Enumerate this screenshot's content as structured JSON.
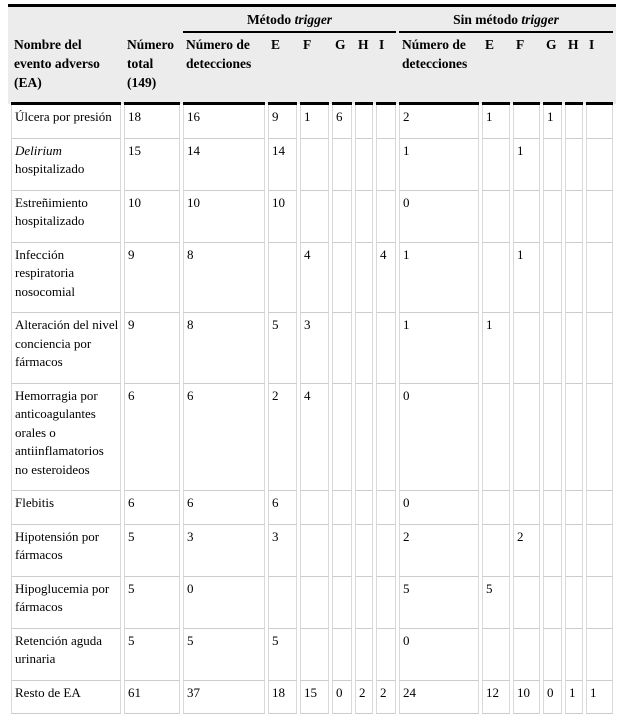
{
  "table": {
    "groups": {
      "trigger": {
        "prefix": "Método ",
        "italic": "trigger"
      },
      "sin": {
        "prefix": "Sin método ",
        "italic": "trigger"
      }
    },
    "headers": {
      "name": "Nombre del evento adverso (EA)",
      "total": "Número total (149)",
      "detections_trigger": "Número de detecciones",
      "detections_sin": "Número de detecciones",
      "letters": [
        "E",
        "F",
        "G",
        "H",
        "I"
      ]
    },
    "rows": [
      {
        "name": [
          {
            "text": "Úlcera por presión",
            "italic": false
          }
        ],
        "total": "18",
        "values": [
          "16",
          "9",
          "1",
          "6",
          "",
          "",
          "2",
          "1",
          "",
          "1",
          "",
          ""
        ]
      },
      {
        "name": [
          {
            "text": "Delirium",
            "italic": true
          },
          {
            "text": " hospitalizado",
            "italic": false
          }
        ],
        "total": "15",
        "values": [
          "14",
          "14",
          "",
          "",
          "",
          "",
          "1",
          "",
          "1",
          "",
          "",
          ""
        ]
      },
      {
        "name": [
          {
            "text": "Estreñimiento hospitalizado",
            "italic": false
          }
        ],
        "total": "10",
        "values": [
          "10",
          "10",
          "",
          "",
          "",
          "",
          "0",
          "",
          "",
          "",
          "",
          ""
        ]
      },
      {
        "name": [
          {
            "text": "Infección respiratoria nosocomial",
            "italic": false
          }
        ],
        "total": "9",
        "values": [
          "8",
          "",
          "4",
          "",
          "",
          "4",
          "1",
          "",
          "1",
          "",
          "",
          ""
        ]
      },
      {
        "name": [
          {
            "text": "Alteración del nivel conciencia por fármacos",
            "italic": false
          }
        ],
        "total": "9",
        "values": [
          "8",
          "5",
          "3",
          "",
          "",
          "",
          "1",
          "1",
          "",
          "",
          "",
          ""
        ]
      },
      {
        "name": [
          {
            "text": "Hemorragia por anticoagulantes orales o antiinflamatorios no esteroideos",
            "italic": false
          }
        ],
        "total": "6",
        "values": [
          "6",
          "2",
          "4",
          "",
          "",
          "",
          "0",
          "",
          "",
          "",
          "",
          ""
        ]
      },
      {
        "name": [
          {
            "text": "Flebitis",
            "italic": false
          }
        ],
        "total": "6",
        "values": [
          "6",
          "6",
          "",
          "",
          "",
          "",
          "0",
          "",
          "",
          "",
          "",
          ""
        ]
      },
      {
        "name": [
          {
            "text": "Hipotensión por fármacos",
            "italic": false
          }
        ],
        "total": "5",
        "values": [
          "3",
          "3",
          "",
          "",
          "",
          "",
          "2",
          "",
          "2",
          "",
          "",
          ""
        ]
      },
      {
        "name": [
          {
            "text": "Hipoglucemia por fármacos",
            "italic": false
          }
        ],
        "total": "5",
        "values": [
          "0",
          "",
          "",
          "",
          "",
          "",
          "5",
          "5",
          "",
          "",
          "",
          ""
        ]
      },
      {
        "name": [
          {
            "text": "Retención aguda urinaria",
            "italic": false
          }
        ],
        "total": "5",
        "values": [
          "5",
          "5",
          "",
          "",
          "",
          "",
          "0",
          "",
          "",
          "",
          "",
          ""
        ]
      },
      {
        "name": [
          {
            "text": "Resto de EA",
            "italic": false
          }
        ],
        "total": "61",
        "values": [
          "37",
          "18",
          "15",
          "0",
          "2",
          "2",
          "24",
          "12",
          "10",
          "0",
          "1",
          "1"
        ]
      }
    ]
  }
}
